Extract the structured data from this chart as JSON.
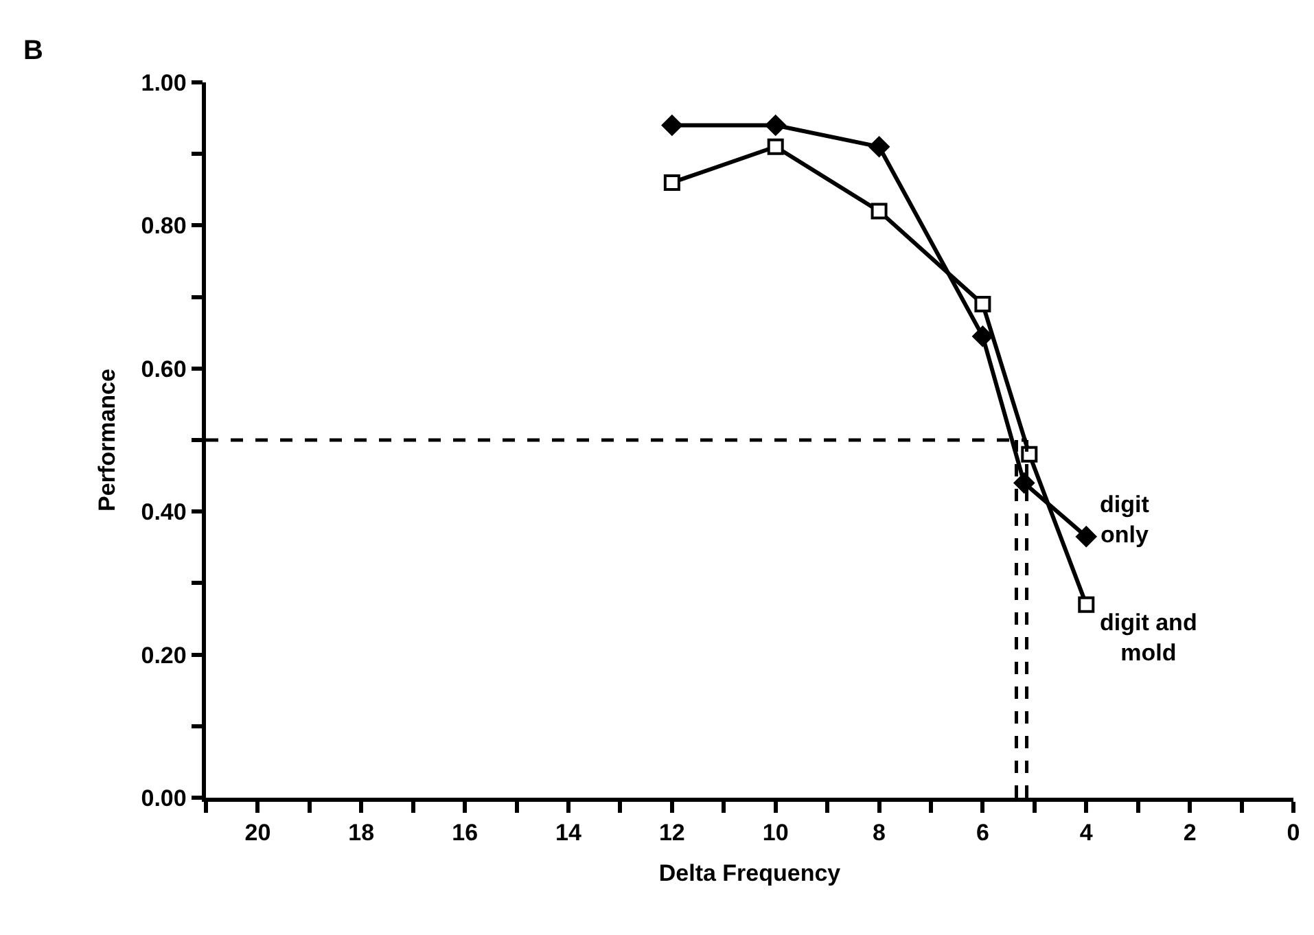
{
  "chart_data": {
    "type": "line",
    "xlabel": "Delta Frequency",
    "ylabel": "Performance",
    "annotations": [
      "B"
    ],
    "x": [
      12,
      10,
      8,
      6,
      5.2,
      4
    ],
    "series": [
      {
        "name": "digit only",
        "color": "#000000",
        "marker": "diamond",
        "values": [
          0.94,
          0.94,
          0.91,
          0.645,
          0.44,
          0.365
        ]
      },
      {
        "name": "digit and mold",
        "color": "#000000",
        "marker": "square",
        "x": [
          12,
          10,
          8,
          6,
          5.1,
          4
        ],
        "values": [
          0.86,
          0.91,
          0.82,
          0.69,
          0.48,
          0.27
        ]
      }
    ],
    "xlim": [
      21,
      0
    ],
    "xticks": [
      {
        "value": 21,
        "label": null
      },
      20,
      {
        "value": 19,
        "label": null
      },
      18,
      {
        "value": 17,
        "label": null
      },
      16,
      {
        "value": 15,
        "label": null
      },
      14,
      {
        "value": 13,
        "label": null
      },
      12,
      {
        "value": 11,
        "label": null
      },
      10,
      {
        "value": 9,
        "label": null
      },
      8,
      {
        "value": 7,
        "label": null
      },
      6,
      {
        "value": 5,
        "label": null
      },
      4,
      {
        "value": 3,
        "label": null
      },
      2,
      {
        "value": 1,
        "label": null
      },
      0
    ],
    "ylim": [
      0,
      1.0
    ],
    "yticks": [
      {
        "value": 0,
        "label": "0.00"
      },
      {
        "value": 0.1,
        "label": null
      },
      {
        "value": 0.2,
        "label": "0.20"
      },
      {
        "value": 0.3,
        "label": null
      },
      {
        "value": 0.4,
        "label": "0.40"
      },
      {
        "value": 0.5,
        "label": null
      },
      {
        "value": 0.6,
        "label": "0.60"
      },
      {
        "value": 0.7,
        "label": null
      },
      {
        "value": 0.8,
        "label": "0.80"
      },
      {
        "value": 0.9,
        "label": null
      },
      {
        "value": 1.0,
        "label": "1.00"
      }
    ],
    "ref_lines": [
      {
        "axis": "y",
        "value": 0.5,
        "line_style": "dashed",
        "color": "#000000"
      },
      {
        "axis": "x",
        "value": 5.35,
        "line_style": "dashed",
        "color": "#000000"
      },
      {
        "axis": "x",
        "value": 5.15,
        "line_style": "dashed",
        "color": "#000000"
      }
    ],
    "legend": false,
    "line_style": "solid"
  }
}
